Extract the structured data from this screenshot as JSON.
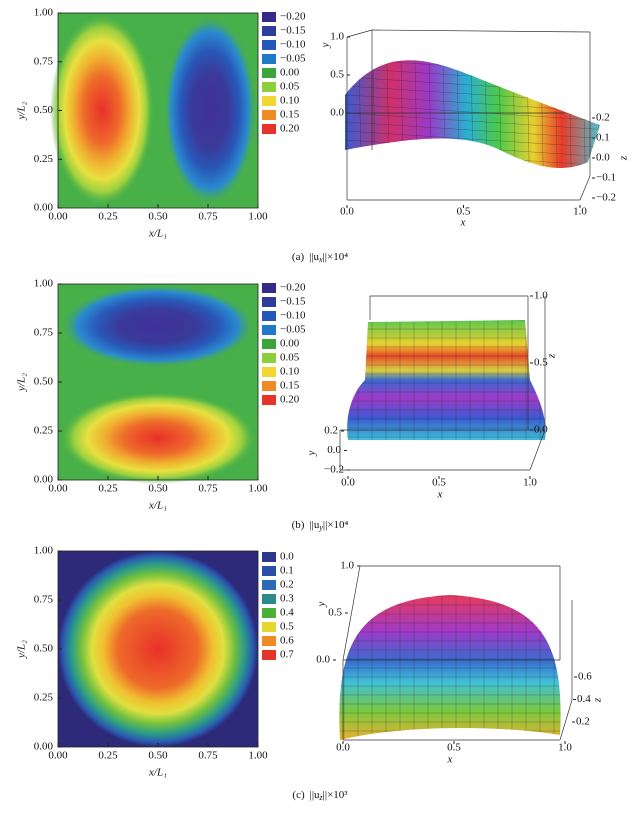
{
  "panels": [
    {
      "caption": {
        "tag": "(a)",
        "pre": "||u",
        "sub": "x",
        "post": "||×10⁴"
      },
      "contour": {
        "xlabel": "x/L₁",
        "ylabel": "y/L₂",
        "xlim": [
          0,
          1
        ],
        "ylim": [
          0,
          1
        ],
        "xticks": [
          {
            "value": 0,
            "label": "0.00"
          },
          {
            "value": 0.25,
            "label": "0.25"
          },
          {
            "value": 0.5,
            "label": "0.50"
          },
          {
            "value": 0.75,
            "label": "0.75"
          },
          {
            "value": 1,
            "label": "1.00"
          }
        ],
        "yticks": [
          {
            "value": 0,
            "label": "0.00"
          },
          {
            "value": 0.25,
            "label": "0.25"
          },
          {
            "value": 0.5,
            "label": "0.50"
          },
          {
            "value": 0.75,
            "label": "0.75"
          },
          {
            "value": 1,
            "label": "1.00"
          }
        ],
        "levels": [
          {
            "value": -0.2,
            "label": "−0.20",
            "color": "#352a87"
          },
          {
            "value": -0.15,
            "label": "−0.15",
            "color": "#2c3e99"
          },
          {
            "value": -0.1,
            "label": "−0.10",
            "color": "#2458b8"
          },
          {
            "value": -0.05,
            "label": "−0.05",
            "color": "#1f78c8"
          },
          {
            "value": 0,
            "label": "0.00",
            "color": "#3aa63a"
          },
          {
            "value": 0.05,
            "label": "0.05",
            "color": "#8ccf3c"
          },
          {
            "value": 0.1,
            "label": "0.10",
            "color": "#f2d632"
          },
          {
            "value": 0.15,
            "label": "0.15",
            "color": "#f08a24"
          },
          {
            "value": 0.2,
            "label": "0.20",
            "color": "#e8332a"
          }
        ]
      },
      "surface": {
        "xlabel": "x",
        "ylabel": "y",
        "zlabel": "z",
        "xticks": [
          {
            "value": 0,
            "label": "0.0"
          },
          {
            "value": 0.5,
            "label": "0.5"
          },
          {
            "value": 1,
            "label": "1.0"
          }
        ],
        "yticks": [
          {
            "value": 0,
            "label": "0.0"
          },
          {
            "value": 0.5,
            "label": "0.5"
          },
          {
            "value": 1,
            "label": "1.0"
          }
        ],
        "zticks": [
          {
            "value": -0.2,
            "label": "−0.2"
          },
          {
            "value": -0.1,
            "label": "−0.1"
          },
          {
            "value": 0,
            "label": "0.0"
          },
          {
            "value": 0.1,
            "label": "0.1"
          },
          {
            "value": 0.2,
            "label": "0.2"
          }
        ]
      }
    },
    {
      "caption": {
        "tag": "(b)",
        "pre": "||u",
        "sub": "y",
        "post": "||×10⁴"
      },
      "contour": {
        "xlabel": "x/L₁",
        "ylabel": "y/L₂",
        "xlim": [
          0,
          1
        ],
        "ylim": [
          0,
          1
        ],
        "xticks": [
          {
            "value": 0,
            "label": "0.00"
          },
          {
            "value": 0.25,
            "label": "0.25"
          },
          {
            "value": 0.5,
            "label": "0.50"
          },
          {
            "value": 0.75,
            "label": "0.75"
          },
          {
            "value": 1,
            "label": "1.00"
          }
        ],
        "yticks": [
          {
            "value": 0,
            "label": "0.00"
          },
          {
            "value": 0.25,
            "label": "0.25"
          },
          {
            "value": 0.5,
            "label": "0.50"
          },
          {
            "value": 0.75,
            "label": "0.75"
          },
          {
            "value": 1,
            "label": "1.00"
          }
        ],
        "levels": [
          {
            "value": -0.2,
            "label": "−0.20",
            "color": "#352a87"
          },
          {
            "value": -0.15,
            "label": "−0.15",
            "color": "#2c3e99"
          },
          {
            "value": -0.1,
            "label": "−0.10",
            "color": "#2458b8"
          },
          {
            "value": -0.05,
            "label": "−0.05",
            "color": "#1f78c8"
          },
          {
            "value": 0,
            "label": "0.00",
            "color": "#3aa63a"
          },
          {
            "value": 0.05,
            "label": "0.05",
            "color": "#8ccf3c"
          },
          {
            "value": 0.1,
            "label": "0.10",
            "color": "#f2d632"
          },
          {
            "value": 0.15,
            "label": "0.15",
            "color": "#f08a24"
          },
          {
            "value": 0.2,
            "label": "0.20",
            "color": "#e8332a"
          }
        ]
      },
      "surface": {
        "xlabel": "x",
        "ylabel": "y",
        "zlabel": "z",
        "xticks": [
          {
            "value": 0,
            "label": "0.0"
          },
          {
            "value": 0.5,
            "label": "0.5"
          },
          {
            "value": 1,
            "label": "1.0"
          }
        ],
        "yticks": [
          {
            "value": -0.2,
            "label": "−0.2"
          },
          {
            "value": 0,
            "label": "0.0"
          },
          {
            "value": 0.2,
            "label": "0.2"
          }
        ],
        "zticks": [
          {
            "value": 0,
            "label": "0.0"
          },
          {
            "value": 0.5,
            "label": "0.5"
          },
          {
            "value": 1,
            "label": "1.0"
          }
        ]
      }
    },
    {
      "caption": {
        "tag": "(c)",
        "pre": "||u",
        "sub": "z",
        "post": "||×10³"
      },
      "contour": {
        "xlabel": "x/L₁",
        "ylabel": "y/L₂",
        "xlim": [
          0,
          1
        ],
        "ylim": [
          0,
          1
        ],
        "xticks": [
          {
            "value": 0,
            "label": "0.00"
          },
          {
            "value": 0.25,
            "label": "0.25"
          },
          {
            "value": 0.5,
            "label": "0.50"
          },
          {
            "value": 0.75,
            "label": "0.75"
          },
          {
            "value": 1,
            "label": "1.00"
          }
        ],
        "yticks": [
          {
            "value": 0,
            "label": "0.00"
          },
          {
            "value": 0.25,
            "label": "0.25"
          },
          {
            "value": 0.5,
            "label": "0.50"
          },
          {
            "value": 0.75,
            "label": "0.75"
          },
          {
            "value": 1,
            "label": "1.00"
          }
        ],
        "levels": [
          {
            "value": 0,
            "label": "0.0",
            "color": "#2d3a8c"
          },
          {
            "value": 0.1,
            "label": "0.1",
            "color": "#2a4fa8"
          },
          {
            "value": 0.2,
            "label": "0.2",
            "color": "#2a6ab8"
          },
          {
            "value": 0.3,
            "label": "0.3",
            "color": "#2c8a8a"
          },
          {
            "value": 0.4,
            "label": "0.4",
            "color": "#4caf3a"
          },
          {
            "value": 0.5,
            "label": "0.5",
            "color": "#e6d630"
          },
          {
            "value": 0.6,
            "label": "0.6",
            "color": "#f08a24"
          },
          {
            "value": 0.7,
            "label": "0.7",
            "color": "#e8332a"
          }
        ]
      },
      "surface": {
        "xlabel": "x",
        "ylabel": "y",
        "zlabel": "z",
        "xticks": [
          {
            "value": 0,
            "label": "0.0"
          },
          {
            "value": 0.5,
            "label": "0.5"
          },
          {
            "value": 1,
            "label": "1.0"
          }
        ],
        "yticks": [
          {
            "value": 0,
            "label": "0.0"
          },
          {
            "value": 0.5,
            "label": "0.5"
          },
          {
            "value": 1,
            "label": "1.0"
          }
        ],
        "zticks": [
          {
            "value": 0.2,
            "label": "0.2"
          },
          {
            "value": 0.4,
            "label": "0.4"
          },
          {
            "value": 0.6,
            "label": "0.6"
          }
        ]
      }
    }
  ]
}
